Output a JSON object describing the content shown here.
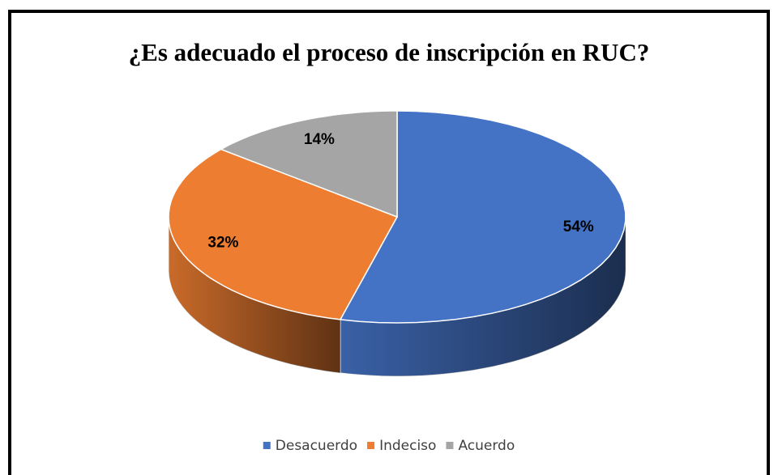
{
  "chart_data": {
    "type": "pie",
    "title": "¿Es adecuado el proceso de inscripción en RUC?",
    "categories": [
      "Desacuerdo",
      "Indeciso",
      "Acuerdo"
    ],
    "values": [
      54,
      32,
      14
    ],
    "value_labels": [
      "54%",
      "32%",
      "14%"
    ],
    "colors": [
      "#4472c4",
      "#ed7d31",
      "#a5a5a5"
    ],
    "legend": "bottom"
  }
}
